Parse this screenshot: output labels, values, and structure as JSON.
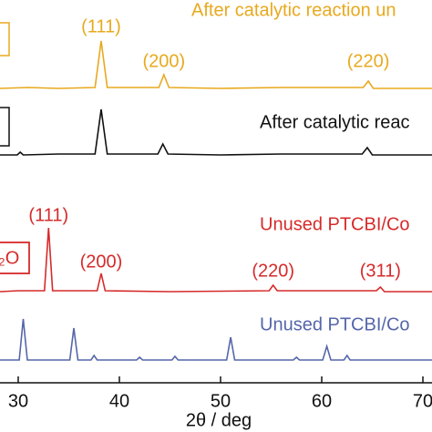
{
  "chart_data": {
    "type": "line",
    "xlabel": "2θ / deg",
    "xlim": [
      28.2,
      70.9
    ],
    "xticks": [
      30,
      40,
      50,
      60,
      70
    ],
    "series": [
      {
        "name": "After catalytic reaction un",
        "color": "#e8a91e",
        "x": [
          28.2,
          31,
          34,
          37.6,
          38.2,
          38.8,
          43.9,
          44.4,
          44.9,
          50,
          56,
          64.1,
          64.6,
          65.1,
          70.9
        ],
        "values": [
          0,
          1,
          0,
          1,
          52,
          1,
          1,
          15,
          1,
          0,
          1,
          1,
          8,
          0,
          0
        ],
        "peak_labels": [
          {
            "text": "(111)",
            "x": 38.2
          },
          {
            "text": "(200)",
            "x": 44.4
          },
          {
            "text": "(220)",
            "x": 64.6
          }
        ]
      },
      {
        "name": "After catalytic reac",
        "color": "#111111",
        "x": [
          28.2,
          29.9,
          30.2,
          30.5,
          34,
          37.6,
          38.2,
          38.8,
          43.8,
          44.3,
          44.8,
          50,
          56,
          64.0,
          64.5,
          65.0,
          70.9
        ],
        "values": [
          0,
          0,
          3,
          0,
          1,
          1,
          50,
          1,
          1,
          12,
          1,
          0,
          1,
          1,
          8,
          0,
          0
        ],
        "peak_labels": []
      },
      {
        "name": "Unused PTCBI/Co",
        "color": "#d62a2a",
        "x": [
          28.2,
          30,
          32.6,
          33.0,
          33.4,
          37.8,
          38.2,
          38.6,
          45,
          54.8,
          55.2,
          55.6,
          65.4,
          65.8,
          66.2,
          70.9
        ],
        "values": [
          0,
          1,
          1,
          70,
          1,
          1,
          20,
          1,
          0,
          1,
          7,
          1,
          1,
          5,
          0,
          0
        ],
        "peak_labels": [
          {
            "text": "(111)",
            "x": 33.0
          },
          {
            "text": "(200)",
            "x": 38.2
          },
          {
            "text": "(220)",
            "x": 55.2
          },
          {
            "text": "(311)",
            "x": 65.8
          }
        ]
      },
      {
        "name": "Unused PTCBI/Co",
        "color": "#5566aa",
        "x": [
          28.2,
          30.1,
          30.5,
          30.9,
          35.1,
          35.5,
          35.9,
          37.2,
          37.5,
          37.8,
          41.7,
          42.0,
          42.3,
          45.2,
          45.5,
          45.8,
          50.6,
          51.0,
          51.4,
          57.2,
          57.5,
          57.8,
          60.1,
          60.5,
          60.9,
          62.2,
          62.5,
          62.8,
          70.9
        ],
        "values": [
          0,
          0,
          45,
          0,
          0,
          35,
          0,
          0,
          5,
          0,
          0,
          3,
          0,
          0,
          4,
          0,
          0,
          25,
          0,
          0,
          3,
          0,
          0,
          15,
          0,
          0,
          5,
          0,
          0
        ],
        "peak_labels": []
      }
    ],
    "box_label": "₂O"
  }
}
